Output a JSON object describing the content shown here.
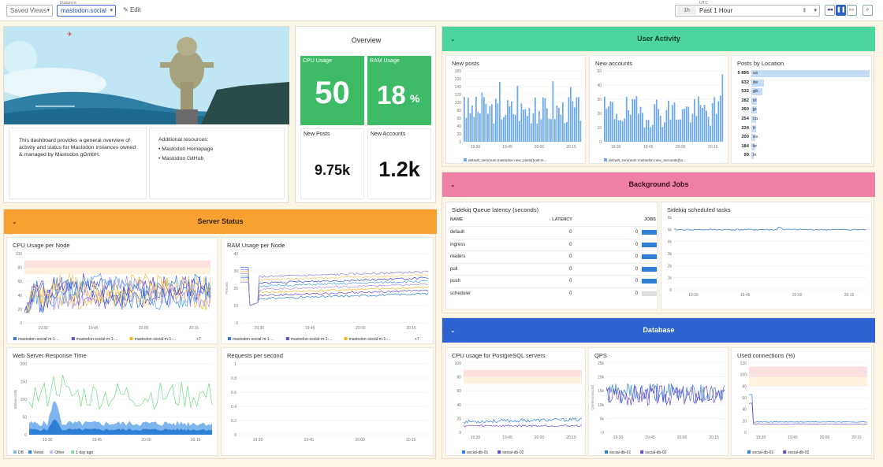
{
  "toolbar": {
    "saved_views": "Saved Views",
    "instance_label": "Instance",
    "instance_value": "mastodon.social",
    "edit": "Edit",
    "time_zone": "UTC",
    "time_short": "1h",
    "time_range": "Past 1 Hour"
  },
  "intro": {
    "description": "This dashboard provides a general overview of activity and status for Mastodon instances owned & managed by Mastodon gGmbH.",
    "resources_title": "Additional resources:",
    "links": [
      "Mastodon Homepage",
      "Mastodon GitHub"
    ]
  },
  "overview": {
    "title": "Overview",
    "cpu_label": "CPU Usage",
    "cpu_value": "50",
    "ram_label": "RAM Usage",
    "ram_value": "18",
    "ram_unit": "%",
    "posts_label": "New Posts",
    "posts_value": "9.75k",
    "accounts_label": "New Accounts",
    "accounts_value": "1.2k"
  },
  "groups": {
    "server": "Server Status",
    "activity": "User Activity",
    "jobs": "Background Jobs",
    "database": "Database"
  },
  "widgets": {
    "cpu_node": "CPU Usage per Node",
    "ram_node": "RAM Usage per Node",
    "web_resp": "Web Server Response Time",
    "rps": "Requests per second",
    "new_posts": "New posts",
    "new_accounts": "New accounts",
    "by_location": "Posts by Location",
    "queue": "Sidekiq Queue latency (seconds)",
    "scheduled": "Sidekiq scheduled tasks",
    "pg_cpu": "CPU usage for PostgreSQL servers",
    "qps": "QPS",
    "conns": "Used connections (%)"
  },
  "time_ticks": [
    "19:30",
    "19:45",
    "20:00",
    "20:15"
  ],
  "legends": {
    "node": [
      "mastodon-social-m-1-...",
      "mastodon-social-m-1-...",
      "mastodon-social-m-1-..."
    ],
    "node_more": "+7",
    "web": [
      "DB",
      "Views",
      "Other",
      "1 day ago"
    ],
    "posts": "default_zero(sum:mastodon.new_posts{host:m...",
    "accounts": "default_zero(sum:mastodon.new_accounts{ho...",
    "db": [
      "social-db-01",
      "social-db-02"
    ]
  },
  "axes": {
    "percent": "Percent",
    "ms": "Milliseconds",
    "queries": "Queries/second"
  },
  "jobs": {
    "col_name": "NAME",
    "col_latency": "LATENCY",
    "col_jobs": "JOBS",
    "rows": [
      {
        "name": "default",
        "latency": "0",
        "jobs": "0",
        "fill": 0.9
      },
      {
        "name": "ingress",
        "latency": "0",
        "jobs": "0",
        "fill": 0.9
      },
      {
        "name": "mailers",
        "latency": "0",
        "jobs": "0",
        "fill": 0.9
      },
      {
        "name": "pull",
        "latency": "0",
        "jobs": "0",
        "fill": 0.9
      },
      {
        "name": "push",
        "latency": "0",
        "jobs": "0",
        "fill": 0.9
      },
      {
        "name": "scheduler",
        "latency": "0",
        "jobs": "0",
        "fill": 0
      }
    ]
  },
  "locations": [
    {
      "n": "5 895",
      "c": "us",
      "v": 5895
    },
    {
      "n": "632",
      "c": "de",
      "v": 632
    },
    {
      "n": "532",
      "c": "gb",
      "v": 532
    },
    {
      "n": "282",
      "c": "nl",
      "v": 282
    },
    {
      "n": "260",
      "c": "jp",
      "v": 260
    },
    {
      "n": "254",
      "c": "ca",
      "v": 254
    },
    {
      "n": "234",
      "c": "fr",
      "v": 234
    },
    {
      "n": "200",
      "c": "es",
      "v": 200
    },
    {
      "n": "184",
      "c": "br",
      "v": 184
    },
    {
      "n": "99",
      "c": "in",
      "v": 99
    }
  ],
  "colors": {
    "accent": "#2d6ce0",
    "green": "#3dbb67",
    "orange": "#f7a130",
    "teal": "#4dd5a0",
    "pink": "#ee80a6",
    "blue": "#2d63d0",
    "lavender": "#a98de8"
  },
  "chart_data": [
    {
      "title": "CPU Usage per Node",
      "type": "line",
      "ylim": [
        0,
        100
      ],
      "yticks": [
        "100",
        "80",
        "60",
        "40",
        "20",
        "0"
      ],
      "xticks": [
        "19:30",
        "19:45",
        "20:00",
        "20:15"
      ]
    },
    {
      "title": "RAM Usage per Node",
      "type": "line",
      "ylim": [
        0,
        40
      ],
      "yticks": [
        "40",
        "30",
        "20",
        "10",
        "0"
      ],
      "ylabel": "Percent"
    },
    {
      "title": "Web Server Response Time",
      "type": "area",
      "yticks": [
        "200",
        "150",
        "100",
        "50",
        "0"
      ],
      "ylabel": "Milliseconds",
      "series": [
        {
          "name": "DB"
        },
        {
          "name": "Views"
        },
        {
          "name": "Other"
        },
        {
          "name": "1 day ago"
        }
      ]
    },
    {
      "title": "Requests per second",
      "type": "line",
      "ylim": [
        0,
        1
      ],
      "yticks": [
        "1",
        "0.8",
        "0.6",
        "0.4",
        "0.2",
        "0"
      ]
    },
    {
      "title": "New posts",
      "type": "bar",
      "yticks": [
        "180",
        "160",
        "140",
        "120",
        "100",
        "80",
        "60",
        "40",
        "20",
        "0"
      ],
      "ylim": [
        0,
        180
      ]
    },
    {
      "title": "New accounts",
      "type": "bar",
      "yticks": [
        "50",
        "40",
        "30",
        "20",
        "10",
        "0"
      ],
      "ylim": [
        0,
        50
      ]
    },
    {
      "title": "Sidekiq scheduled tasks",
      "type": "line",
      "yticks": [
        "6k",
        "5k",
        "4k",
        "3k",
        "2k",
        "1k",
        "0"
      ],
      "ylim": [
        0,
        6000
      ]
    },
    {
      "title": "CPU usage for PostgreSQL servers",
      "type": "line",
      "yticks": [
        "100",
        "80",
        "60",
        "40",
        "20",
        "0"
      ],
      "ylim": [
        0,
        100
      ]
    },
    {
      "title": "QPS",
      "type": "line",
      "yticks": [
        "25k",
        "20k",
        "15k",
        "10k",
        "5k",
        "0"
      ],
      "ylabel": "Queries/second"
    },
    {
      "title": "Used connections (%)",
      "type": "line",
      "yticks": [
        "120",
        "100",
        "80",
        "60",
        "40",
        "20",
        "0"
      ],
      "ylim": [
        0,
        120
      ]
    }
  ]
}
